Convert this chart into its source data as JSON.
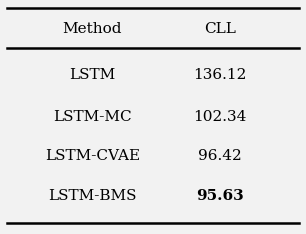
{
  "headers": [
    "Method",
    "CLL"
  ],
  "rows": [
    [
      "LSTM",
      "136.12"
    ],
    [
      "LSTM-MC",
      "102.34"
    ],
    [
      "LSTM-CVAE",
      "96.42"
    ],
    [
      "LSTM-BMS",
      "95.63"
    ]
  ],
  "bold_row": 3,
  "bold_col": 1,
  "background_color": "#f2f2f2",
  "header_fontsize": 11,
  "row_fontsize": 11,
  "figsize": [
    3.06,
    2.34
  ],
  "dpi": 100
}
